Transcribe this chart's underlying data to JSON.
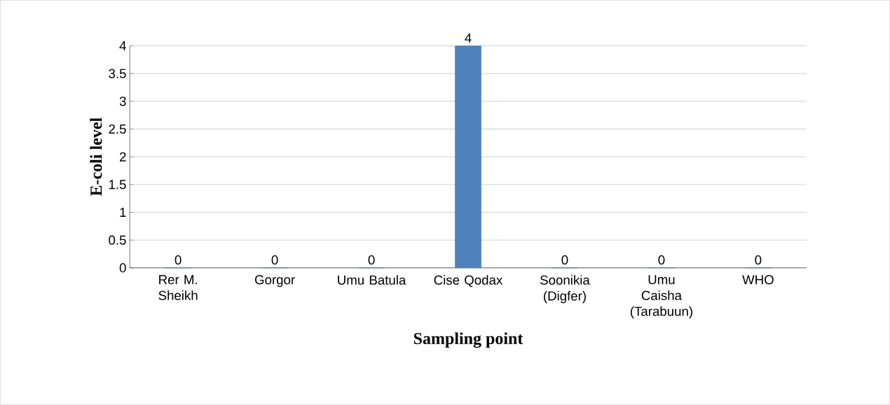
{
  "chart_data": {
    "type": "bar",
    "xlabel": "Sampling point",
    "ylabel": "E-coli level",
    "categories": [
      "Rer M. Sheikh",
      "Gorgor",
      "Umu Batula",
      "Cise Qodax",
      "Soonikia (Digfer)",
      "Umu Caisha (Tarabuun)",
      "WHO"
    ],
    "values": [
      0,
      0,
      0,
      4,
      0,
      0,
      0
    ],
    "color": "#4f81bd",
    "ylim": [
      0,
      4
    ],
    "yticks": [
      0,
      0.5,
      1,
      1.5,
      2,
      2.5,
      3,
      3.5,
      4
    ],
    "grid": "y",
    "data_labels": true
  }
}
